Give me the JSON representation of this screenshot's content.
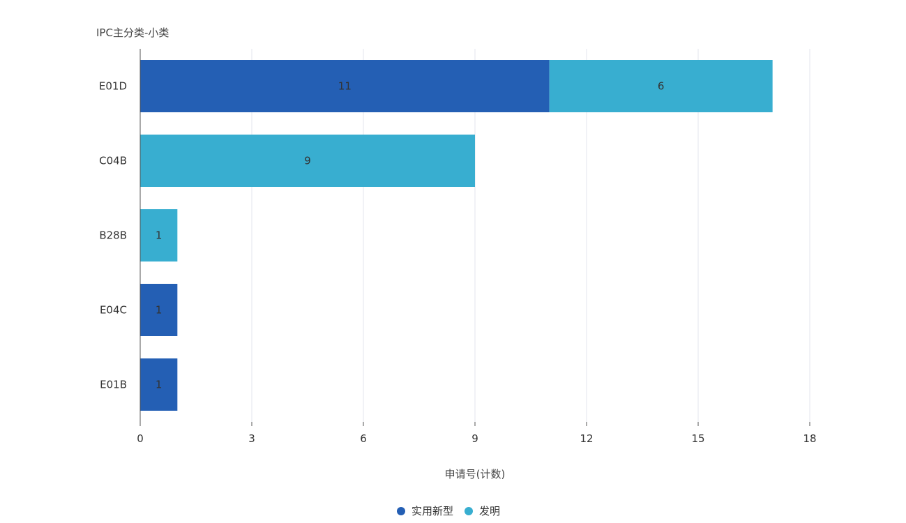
{
  "chart_data": {
    "type": "bar",
    "orientation": "horizontal",
    "stacked": true,
    "y_axis_title": "IPC主分类-小类",
    "x_axis_title": "申请号(计数)",
    "categories": [
      "E01D",
      "C04B",
      "B28B",
      "E04C",
      "E01B"
    ],
    "series": [
      {
        "name": "实用新型",
        "color": "#245fb4",
        "values": [
          11,
          0,
          0,
          1,
          1
        ]
      },
      {
        "name": "发明",
        "color": "#38aed0",
        "values": [
          6,
          9,
          1,
          0,
          0
        ]
      }
    ],
    "xlim": [
      0,
      18
    ],
    "x_ticks": [
      0,
      3,
      6,
      9,
      12,
      15,
      18
    ],
    "grid": true,
    "legend_position": "bottom-center",
    "data_labels": true
  }
}
